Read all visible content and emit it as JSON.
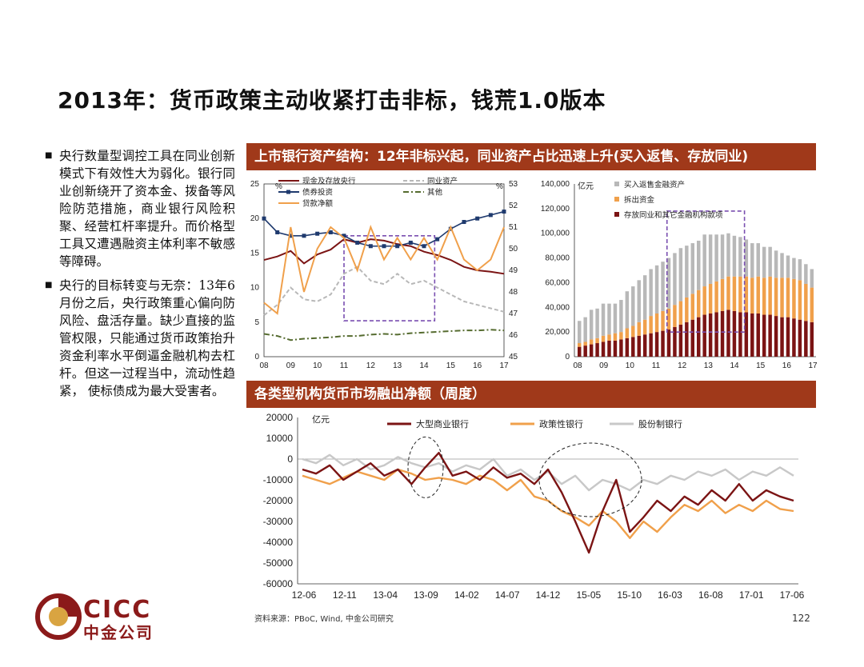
{
  "slide": {
    "title": "2013年：货币政策主动收紧打击非标，钱荒1.0版本",
    "bullets": [
      "央行数量型调控工具在同业创新模式下有效性大为弱化。银行同业创新绕开了资本金、拨备等风险防范措施，商业银行风险积聚、经营杠杆率提升。而价格型工具又遭遇融资主体利率不敏感等障碍。",
      "央行的目标转变与无奈：13年6月份之后，央行政策重心偏向防风险、盘活存量。缺少直接的监管权限，只能通过货币政策抬升资金利率水平倒逼金融机构去杠杆。但这一过程当中，流动性趋紧， 使标债成为最大受害者。"
    ],
    "bullet_marker": "■",
    "section1_title": "上市银行资产结构：12年非标兴起，同业资产占比迅速上升(买入返售、存放同业)",
    "section2_title": "各类型机构货币市场融出净额（周度）",
    "source": "资料来源：PBoC, Wind, 中金公司研究",
    "page_number": "122",
    "logo_text": "CICC",
    "logo_cn": "中金公司",
    "colors": {
      "band": "#a0391a",
      "brand": "#8b1a1a"
    }
  },
  "chart_data": [
    {
      "type": "line",
      "x": [
        2008.0,
        2008.5,
        2009.0,
        2009.5,
        2010.0,
        2010.5,
        2011.0,
        2011.5,
        2012.0,
        2012.5,
        2013.0,
        2013.5,
        2014.0,
        2014.5,
        2015.0,
        2015.5,
        2016.0,
        2016.5,
        2017.0
      ],
      "x_ticks": [
        "08",
        "09",
        "10",
        "11",
        "12",
        "13",
        "14",
        "15",
        "16",
        "17"
      ],
      "ylim_left": [
        0,
        25
      ],
      "ylim_right": [
        45,
        53
      ],
      "left_unit": "%",
      "right_unit": "%",
      "y_ticks_left": [
        "0",
        "5",
        "10",
        "15",
        "20",
        "25"
      ],
      "y_ticks_right": [
        "45",
        "46",
        "47",
        "48",
        "49",
        "50",
        "51",
        "52",
        "53"
      ],
      "series": [
        {
          "name": "现金及存放央行",
          "axis": "left",
          "color": "#7b1414",
          "style": "solid",
          "values": [
            14.0,
            14.5,
            15.3,
            13.5,
            14.8,
            15.5,
            17.0,
            16.5,
            17.0,
            16.8,
            16.3,
            16.0,
            15.2,
            14.7,
            14.0,
            13.0,
            12.5,
            12.3,
            12.0
          ]
        },
        {
          "name": "同业资产",
          "axis": "left",
          "color": "#b8b8b8",
          "style": "dash",
          "values": [
            6.0,
            7.5,
            10.0,
            8.3,
            8.0,
            9.0,
            12.0,
            13.0,
            11.0,
            10.5,
            12.0,
            10.5,
            11.0,
            10.0,
            9.0,
            8.0,
            7.5,
            7.0,
            6.5
          ]
        },
        {
          "name": "债券投资",
          "axis": "left",
          "color": "#1f3a6e",
          "style": "square",
          "values": [
            20.0,
            18.0,
            17.5,
            17.5,
            17.8,
            18.0,
            17.5,
            16.5,
            16.0,
            16.0,
            16.0,
            16.5,
            16.0,
            17.0,
            18.5,
            19.5,
            20.0,
            20.5,
            21.0
          ]
        },
        {
          "name": "其他",
          "axis": "left",
          "color": "#556b2f",
          "style": "dashdot",
          "values": [
            3.3,
            3.0,
            2.4,
            2.6,
            2.7,
            2.8,
            3.0,
            3.0,
            3.2,
            3.3,
            3.2,
            3.4,
            3.5,
            3.6,
            3.7,
            3.8,
            3.8,
            3.9,
            3.8
          ]
        },
        {
          "name": "贷款净额",
          "axis": "right",
          "color": "#f0a04b",
          "style": "solid",
          "values": [
            47.5,
            47.0,
            51.0,
            48.0,
            50.0,
            51.0,
            50.5,
            49.0,
            51.0,
            49.5,
            50.5,
            49.5,
            50.5,
            49.5,
            51.0,
            49.5,
            49.0,
            49.5,
            51.0
          ]
        }
      ],
      "annotation": "purple dashed box 2011.5–2014.4"
    },
    {
      "type": "bar",
      "unit": "亿元",
      "ylim": [
        0,
        140000
      ],
      "y_ticks": [
        "0",
        "20,000",
        "40,000",
        "60,000",
        "80,000",
        "100,000",
        "120,000",
        "140,000"
      ],
      "x_ticks": [
        "08",
        "09",
        "10",
        "11",
        "12",
        "13",
        "14",
        "15",
        "16",
        "17"
      ],
      "series": [
        {
          "name": "买入返售金融资产",
          "color": "#b8b8b8",
          "values": [
            18000,
            20000,
            24000,
            24000,
            26000,
            25000,
            24000,
            26000,
            30000,
            32000,
            34000,
            36000,
            38000,
            39000,
            40000,
            41000,
            42000,
            43000,
            42000,
            41000,
            40000,
            42000,
            40000,
            38000,
            36000,
            35000,
            33000,
            32000,
            30000,
            28000,
            27000,
            25000,
            24000,
            22000,
            20000,
            18000,
            17000,
            17000,
            16000,
            15000
          ]
        },
        {
          "name": "拆出资金",
          "color": "#f0a04b",
          "values": [
            3000,
            3000,
            4000,
            4000,
            5000,
            5000,
            6000,
            6000,
            8000,
            9000,
            11000,
            12000,
            14000,
            15000,
            16000,
            17000,
            18000,
            19000,
            20000,
            21000,
            22000,
            23000,
            24000,
            25000,
            26000,
            27000,
            28000,
            29000,
            29000,
            29000,
            30000,
            30000,
            31000,
            31000,
            32000,
            32000,
            32000,
            32000,
            30000,
            28000
          ]
        },
        {
          "name": "存放同业和其它金融机构款项",
          "color": "#7b1414",
          "values": [
            8000,
            9000,
            10000,
            11000,
            12000,
            13000,
            13000,
            14000,
            15000,
            16000,
            17000,
            18000,
            19000,
            20000,
            21000,
            22000,
            24000,
            26000,
            28000,
            30000,
            32000,
            34000,
            35000,
            36000,
            37000,
            38000,
            37000,
            36000,
            36000,
            35000,
            35000,
            34000,
            34000,
            33000,
            32000,
            32000,
            31000,
            30000,
            29000,
            28000
          ]
        }
      ],
      "annotation": "purple dashed box 2011.5–2014.9"
    },
    {
      "type": "line",
      "unit": "亿元",
      "ylim": [
        -60000,
        20000
      ],
      "y_ticks": [
        "20000",
        "10000",
        "0",
        "-10000",
        "-20000",
        "-30000",
        "-40000",
        "-50000",
        "-60000"
      ],
      "x_ticks": [
        "12-06",
        "12-11",
        "13-04",
        "13-09",
        "14-02",
        "14-07",
        "14-12",
        "15-05",
        "15-10",
        "16-03",
        "16-08",
        "17-01",
        "17-06"
      ],
      "series": [
        {
          "name": "大型商业银行",
          "color": "#7b1414",
          "values": [
            -5000,
            -7000,
            -3000,
            -10000,
            -6000,
            -2000,
            -8000,
            -5000,
            -12000,
            -4000,
            3000,
            -8000,
            -6000,
            -10000,
            -4000,
            -9000,
            -7000,
            -12000,
            -5000,
            -16000,
            -30000,
            -45000,
            -25000,
            -10000,
            -35000,
            -28000,
            -20000,
            -25000,
            -18000,
            -22000,
            -15000,
            -20000,
            -12000,
            -20000,
            -15000,
            -18000,
            -20000
          ]
        },
        {
          "name": "政策性银行",
          "color": "#f0a04b",
          "values": [
            -8000,
            -10000,
            -12000,
            -9000,
            -6000,
            -8000,
            -10000,
            -5000,
            -7000,
            -10000,
            -9000,
            -10000,
            -12000,
            -8000,
            -10000,
            -15000,
            -10000,
            -18000,
            -20000,
            -25000,
            -28000,
            -32000,
            -25000,
            -30000,
            -38000,
            -30000,
            -35000,
            -28000,
            -22000,
            -25000,
            -20000,
            -26000,
            -22000,
            -25000,
            -20000,
            -24000,
            -25000
          ]
        },
        {
          "name": "股份制银行",
          "color": "#c8c8c8",
          "values": [
            0,
            -2000,
            2000,
            -3000,
            0,
            -5000,
            -3000,
            1000,
            -2000,
            -4000,
            -2000,
            -6000,
            -3000,
            -5000,
            0,
            -8000,
            -5000,
            -10000,
            -6000,
            -12000,
            -8000,
            -15000,
            -10000,
            -12000,
            -15000,
            -10000,
            -12000,
            -8000,
            -10000,
            -6000,
            -8000,
            -5000,
            -10000,
            -6000,
            -8000,
            -4000,
            -8000
          ]
        }
      ],
      "annotation": "dashed ellipses around 13-06 and 14-12 to 15-10"
    }
  ]
}
